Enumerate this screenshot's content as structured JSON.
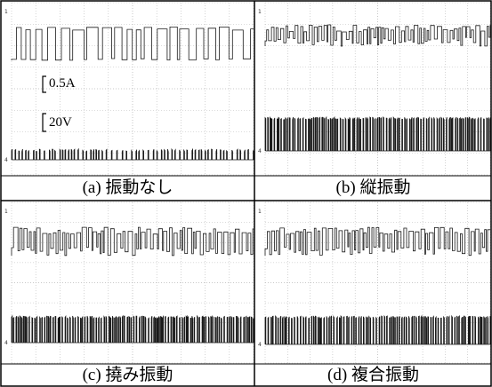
{
  "figure": {
    "panels": [
      {
        "id": "a",
        "caption": "(a)  振動なし",
        "mode": "none",
        "scale_labels": {
          "current": "0.5A",
          "voltage": "20V"
        }
      },
      {
        "id": "b",
        "caption": "(b)  縦振動",
        "mode": "longitudinal"
      },
      {
        "id": "c",
        "caption": "(c)  撓み振動",
        "mode": "flexural"
      },
      {
        "id": "d",
        "caption": "(d)  複合振動",
        "mode": "combined"
      }
    ]
  },
  "colors": {
    "trace": "#1a1a1a",
    "grid": "#b8b8b8",
    "border": "#000000",
    "background": "#ffffff"
  }
}
